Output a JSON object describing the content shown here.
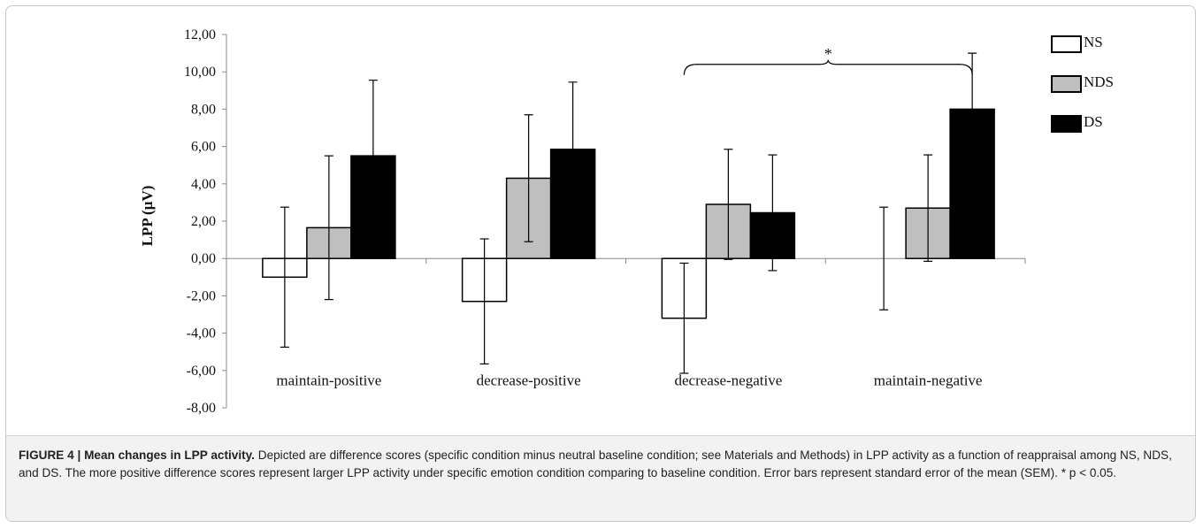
{
  "chart_data": {
    "type": "bar",
    "title": "",
    "xlabel": "",
    "ylabel": "LPP (µV)",
    "ylim": [
      -8,
      12
    ],
    "yticks": [
      12,
      10,
      8,
      6,
      4,
      2,
      0,
      -2,
      -4,
      -6,
      -8
    ],
    "ytick_labels": [
      "12,00",
      "10,00",
      "8,00",
      "6,00",
      "4,00",
      "2,00",
      "0,00",
      "-2,00",
      "-4,00",
      "-6,00",
      "-8,00"
    ],
    "categories": [
      "maintain-positive",
      "decrease-positive",
      "decrease-negative",
      "maintain-negative"
    ],
    "series": [
      {
        "name": "NS",
        "values": [
          -1.0,
          -2.3,
          -3.2,
          0.0
        ],
        "errors": [
          3.75,
          3.35,
          2.95,
          2.75
        ],
        "color": "#ffffff"
      },
      {
        "name": "NDS",
        "values": [
          1.65,
          4.3,
          2.9,
          2.7
        ],
        "errors": [
          3.85,
          3.4,
          2.95,
          2.85
        ],
        "color": "#bfbfbf"
      },
      {
        "name": "DS",
        "values": [
          5.5,
          5.85,
          2.45,
          8.0
        ],
        "errors": [
          4.05,
          3.6,
          3.1,
          3.0
        ],
        "color": "#000000"
      }
    ],
    "significance": {
      "between": [
        "decrease-negative",
        "maintain-negative"
      ],
      "label": "*"
    },
    "legend": "top-right",
    "grid": false
  },
  "caption": {
    "label": "FIGURE 4 |",
    "title": "Mean changes in LPP activity.",
    "body": " Depicted are difference scores (specific condition minus neutral baseline condition; see Materials and Methods) in LPP activity as a function of reappraisal among NS, NDS, and DS. The more positive difference scores represent larger LPP activity under specific emotion condition comparing to baseline condition. Error bars represent standard error of the mean (SEM). * p < 0.05."
  }
}
